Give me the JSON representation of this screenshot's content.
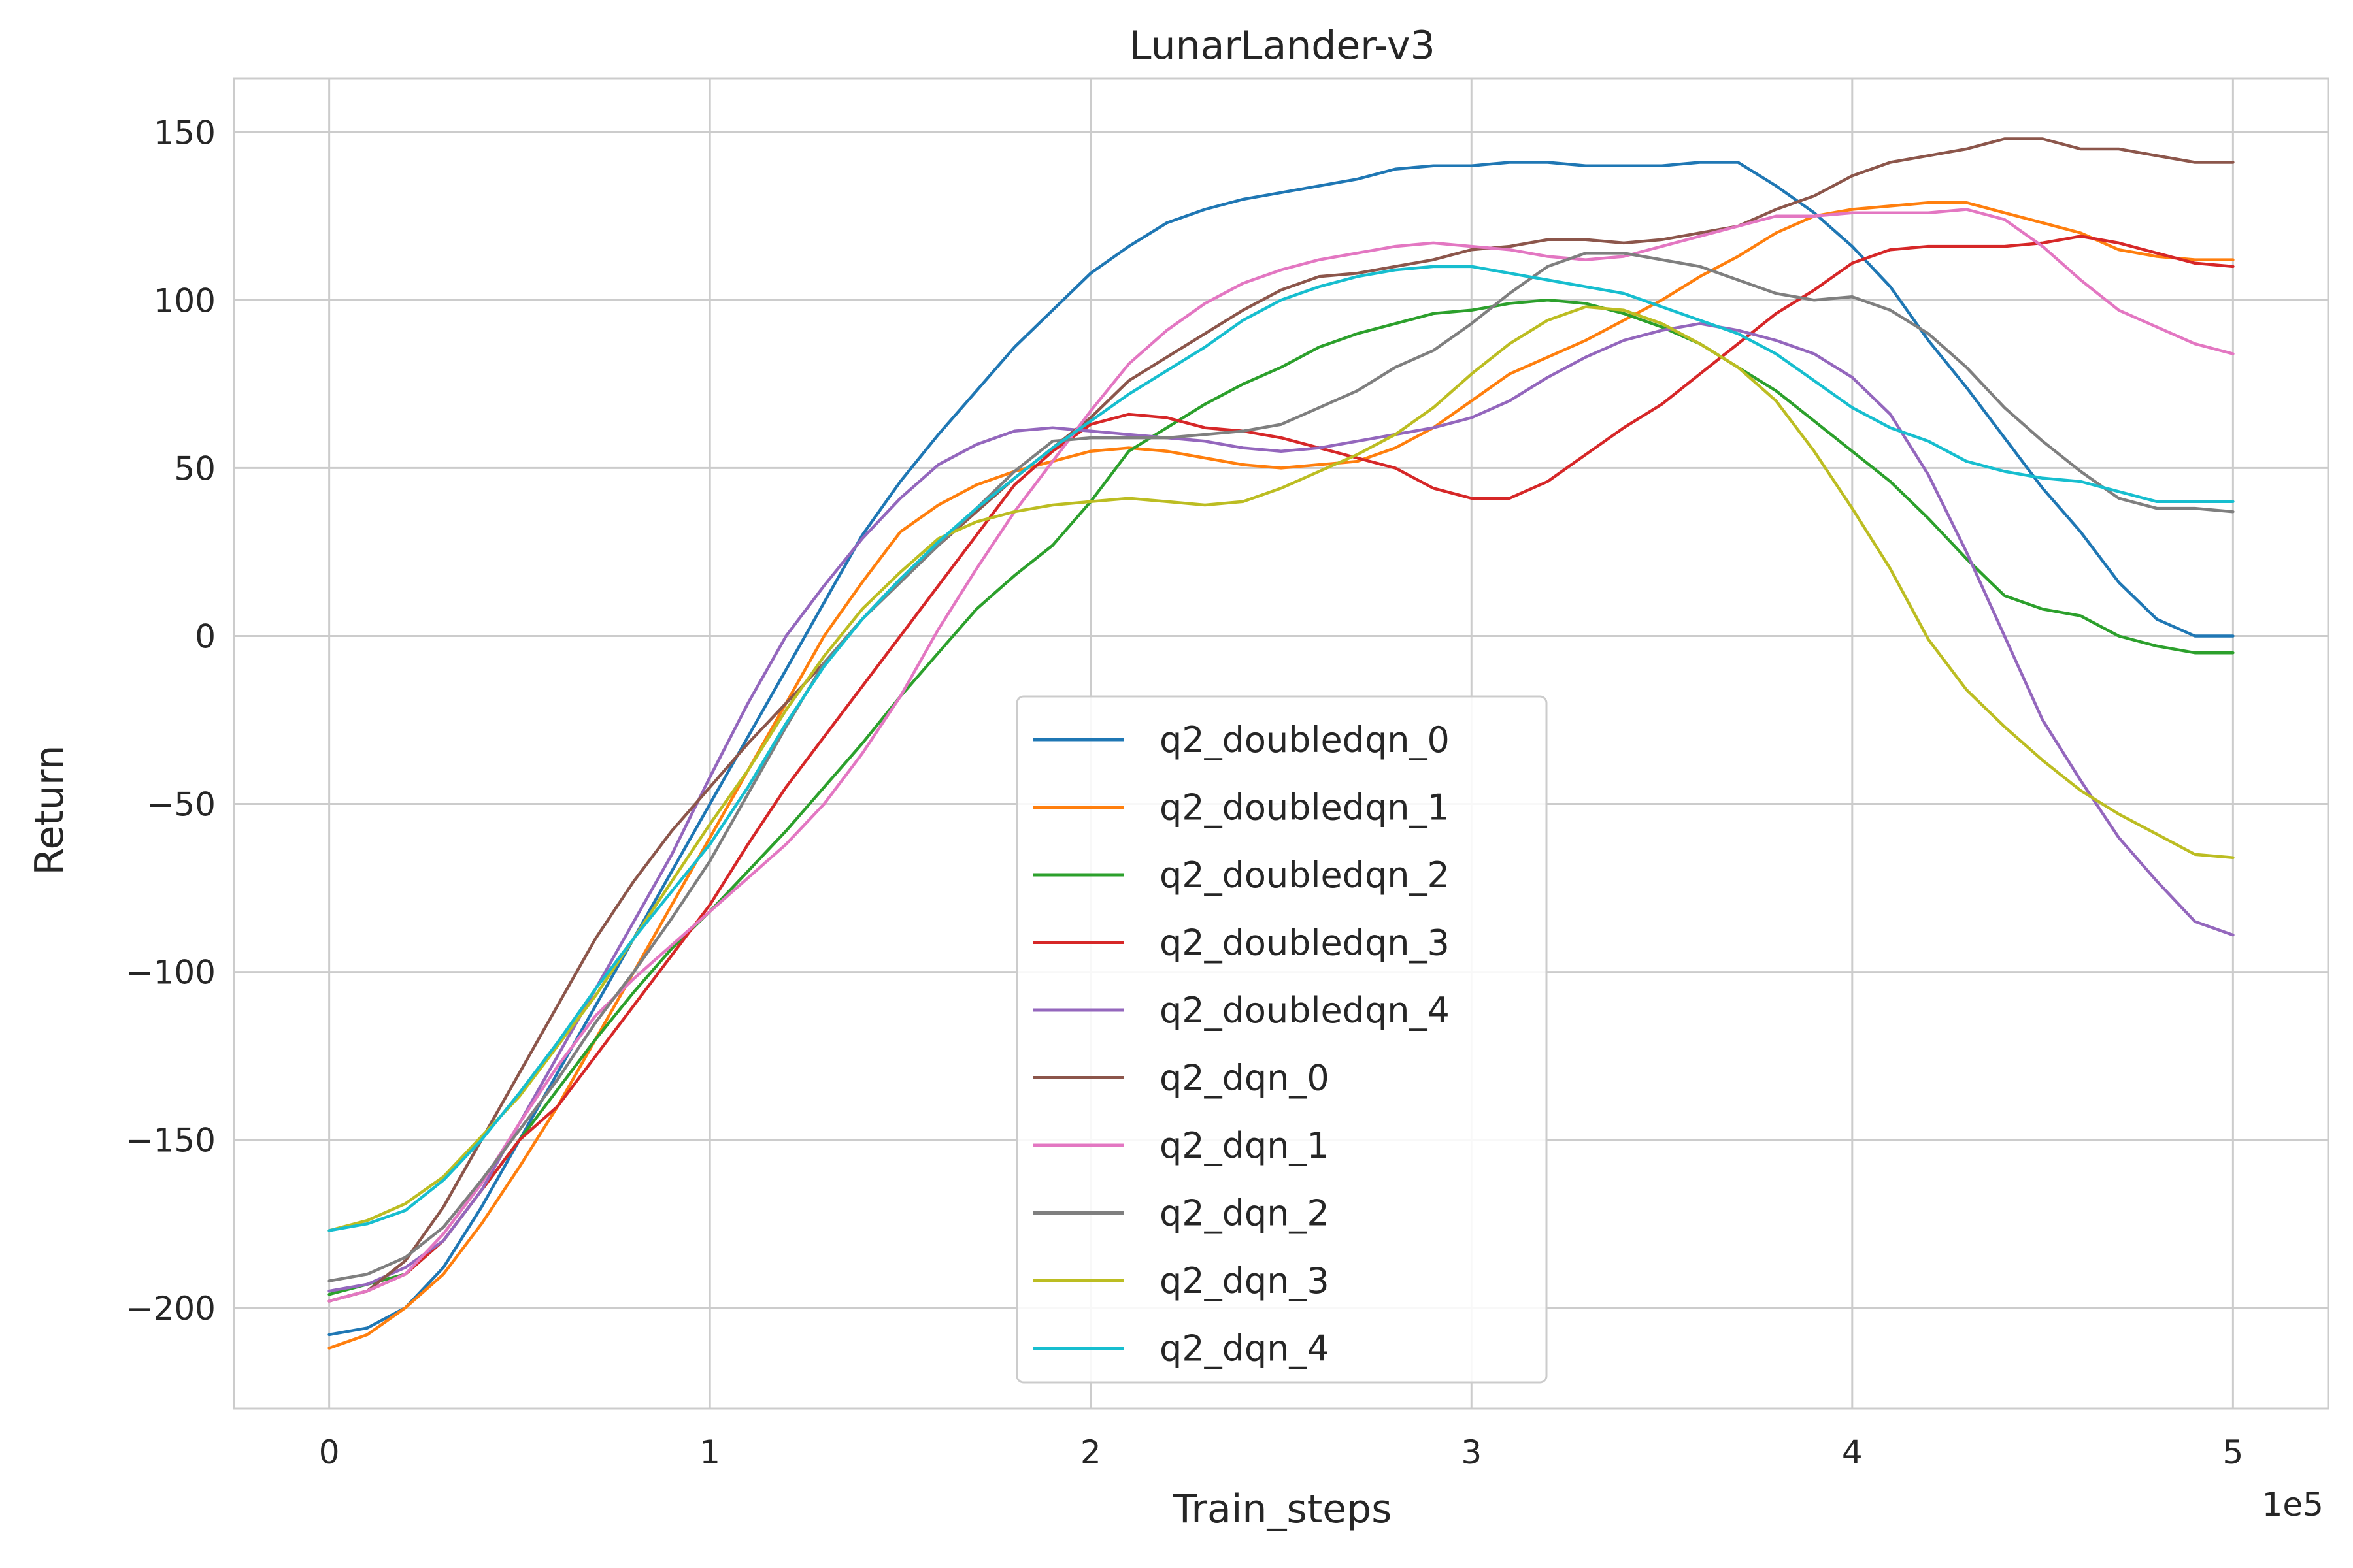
{
  "chart_data": {
    "type": "line",
    "title": "LunarLander-v3",
    "xlabel": "Train_steps",
    "ylabel": "Return",
    "x_offset_label": "1e5",
    "xlim": [
      -0.25,
      5.25
    ],
    "ylim": [
      -230,
      166
    ],
    "xticks": [
      0,
      1,
      2,
      3,
      4,
      5
    ],
    "xtick_labels": [
      "0",
      "1",
      "2",
      "3",
      "4",
      "5"
    ],
    "yticks": [
      -200,
      -150,
      -100,
      -50,
      0,
      50,
      100,
      150
    ],
    "ytick_labels": [
      "−200",
      "−150",
      "−100",
      "−50",
      "0",
      "50",
      "100",
      "150"
    ],
    "grid": true,
    "legend_position": "lower-center",
    "x": [
      0,
      0.1,
      0.2,
      0.3,
      0.4,
      0.5,
      0.6,
      0.7,
      0.8,
      0.9,
      1.0,
      1.1,
      1.2,
      1.3,
      1.4,
      1.5,
      1.6,
      1.7,
      1.8,
      1.9,
      2.0,
      2.1,
      2.2,
      2.3,
      2.4,
      2.5,
      2.6,
      2.7,
      2.8,
      2.9,
      3.0,
      3.1,
      3.2,
      3.3,
      3.4,
      3.5,
      3.6,
      3.7,
      3.8,
      3.9,
      4.0,
      4.1,
      4.2,
      4.3,
      4.4,
      4.5,
      4.6,
      4.7,
      4.8,
      4.9,
      5.0
    ],
    "series": [
      {
        "name": "q2_doubledqn_0",
        "color": "#1f77b4",
        "values": [
          -208,
          -206,
          -200,
          -188,
          -170,
          -150,
          -130,
          -110,
          -90,
          -70,
          -50,
          -30,
          -10,
          10,
          30,
          46,
          60,
          73,
          86,
          97,
          108,
          116,
          123,
          127,
          130,
          132,
          134,
          136,
          139,
          140,
          140,
          141,
          141,
          140,
          140,
          140,
          141,
          141,
          134,
          126,
          116,
          104,
          88,
          74,
          59,
          44,
          31,
          16,
          5,
          0,
          0
        ]
      },
      {
        "name": "q2_doubledqn_1",
        "color": "#ff7f0e",
        "values": [
          -212,
          -208,
          -200,
          -190,
          -175,
          -158,
          -140,
          -120,
          -100,
          -80,
          -60,
          -40,
          -20,
          0,
          16,
          31,
          39,
          45,
          49,
          52,
          55,
          56,
          55,
          53,
          51,
          50,
          51,
          52,
          56,
          62,
          70,
          78,
          83,
          88,
          94,
          100,
          107,
          113,
          120,
          125,
          127,
          128,
          129,
          129,
          126,
          123,
          120,
          115,
          113,
          112,
          112
        ]
      },
      {
        "name": "q2_doubledqn_2",
        "color": "#2ca02c",
        "values": [
          -196,
          -193,
          -190,
          -180,
          -165,
          -150,
          -135,
          -120,
          -106,
          -93,
          -82,
          -70,
          -58,
          -45,
          -32,
          -18,
          -5,
          8,
          18,
          27,
          40,
          55,
          62,
          69,
          75,
          80,
          86,
          90,
          93,
          96,
          97,
          99,
          100,
          99,
          96,
          92,
          87,
          80,
          73,
          64,
          55,
          46,
          35,
          23,
          12,
          8,
          6,
          0,
          -3,
          -5,
          -5
        ]
      },
      {
        "name": "q2_doubledqn_3",
        "color": "#d62728",
        "values": [
          -198,
          -195,
          -190,
          -180,
          -165,
          -150,
          -140,
          -125,
          -110,
          -95,
          -80,
          -62,
          -45,
          -30,
          -15,
          0,
          15,
          30,
          45,
          55,
          63,
          66,
          65,
          62,
          61,
          59,
          56,
          53,
          50,
          44,
          41,
          41,
          46,
          54,
          62,
          69,
          78,
          87,
          96,
          103,
          111,
          115,
          116,
          116,
          116,
          117,
          119,
          117,
          114,
          111,
          110
        ]
      },
      {
        "name": "q2_doubledqn_4",
        "color": "#9467bd",
        "values": [
          -195,
          -193,
          -188,
          -180,
          -165,
          -145,
          -125,
          -105,
          -85,
          -65,
          -42,
          -20,
          0,
          15,
          29,
          41,
          51,
          57,
          61,
          62,
          61,
          60,
          59,
          58,
          56,
          55,
          56,
          58,
          60,
          62,
          65,
          70,
          77,
          83,
          88,
          91,
          93,
          91,
          88,
          84,
          77,
          66,
          48,
          25,
          0,
          -25,
          -43,
          -60,
          -73,
          -85,
          -89
        ]
      },
      {
        "name": "q2_dqn_0",
        "color": "#8c564b",
        "values": [
          -198,
          -195,
          -186,
          -170,
          -150,
          -130,
          -110,
          -90,
          -73,
          -58,
          -45,
          -32,
          -20,
          -8,
          5,
          17,
          27,
          37,
          47,
          56,
          65,
          76,
          83,
          90,
          97,
          103,
          107,
          108,
          110,
          112,
          115,
          116,
          118,
          118,
          117,
          118,
          120,
          122,
          127,
          131,
          137,
          141,
          143,
          145,
          148,
          148,
          145,
          145,
          143,
          141,
          141
        ]
      },
      {
        "name": "q2_dqn_1",
        "color": "#e377c2",
        "values": [
          -198,
          -195,
          -190,
          -178,
          -163,
          -145,
          -128,
          -113,
          -102,
          -92,
          -82,
          -72,
          -62,
          -50,
          -35,
          -18,
          2,
          20,
          37,
          52,
          67,
          81,
          91,
          99,
          105,
          109,
          112,
          114,
          116,
          117,
          116,
          115,
          113,
          112,
          113,
          116,
          119,
          122,
          125,
          125,
          126,
          126,
          126,
          127,
          124,
          116,
          106,
          97,
          92,
          87,
          84
        ]
      },
      {
        "name": "q2_dqn_2",
        "color": "#7f7f7f",
        "values": [
          -192,
          -190,
          -185,
          -176,
          -162,
          -147,
          -132,
          -115,
          -100,
          -84,
          -67,
          -47,
          -27,
          -8,
          5,
          16,
          27,
          38,
          49,
          58,
          59,
          59,
          59,
          60,
          61,
          63,
          68,
          73,
          80,
          85,
          93,
          102,
          110,
          114,
          114,
          112,
          110,
          106,
          102,
          100,
          101,
          97,
          90,
          80,
          68,
          58,
          49,
          41,
          38,
          38,
          37
        ]
      },
      {
        "name": "q2_dqn_3",
        "color": "#bcbd22",
        "values": [
          -177,
          -174,
          -169,
          -161,
          -149,
          -137,
          -122,
          -107,
          -90,
          -73,
          -56,
          -40,
          -22,
          -6,
          8,
          19,
          29,
          34,
          37,
          39,
          40,
          41,
          40,
          39,
          40,
          44,
          49,
          54,
          60,
          68,
          78,
          87,
          94,
          98,
          97,
          93,
          87,
          80,
          70,
          55,
          38,
          20,
          -1,
          -16,
          -27,
          -37,
          -46,
          -53,
          -59,
          -65,
          -66
        ]
      },
      {
        "name": "q2_dqn_4",
        "color": "#17becf",
        "values": [
          -177,
          -175,
          -171,
          -162,
          -150,
          -136,
          -121,
          -105,
          -90,
          -76,
          -62,
          -45,
          -26,
          -9,
          5,
          17,
          28,
          38,
          47,
          56,
          64,
          72,
          79,
          86,
          94,
          100,
          104,
          107,
          109,
          110,
          110,
          108,
          106,
          104,
          102,
          98,
          94,
          90,
          84,
          76,
          68,
          62,
          58,
          52,
          49,
          47,
          46,
          43,
          40,
          40,
          40
        ]
      }
    ]
  }
}
